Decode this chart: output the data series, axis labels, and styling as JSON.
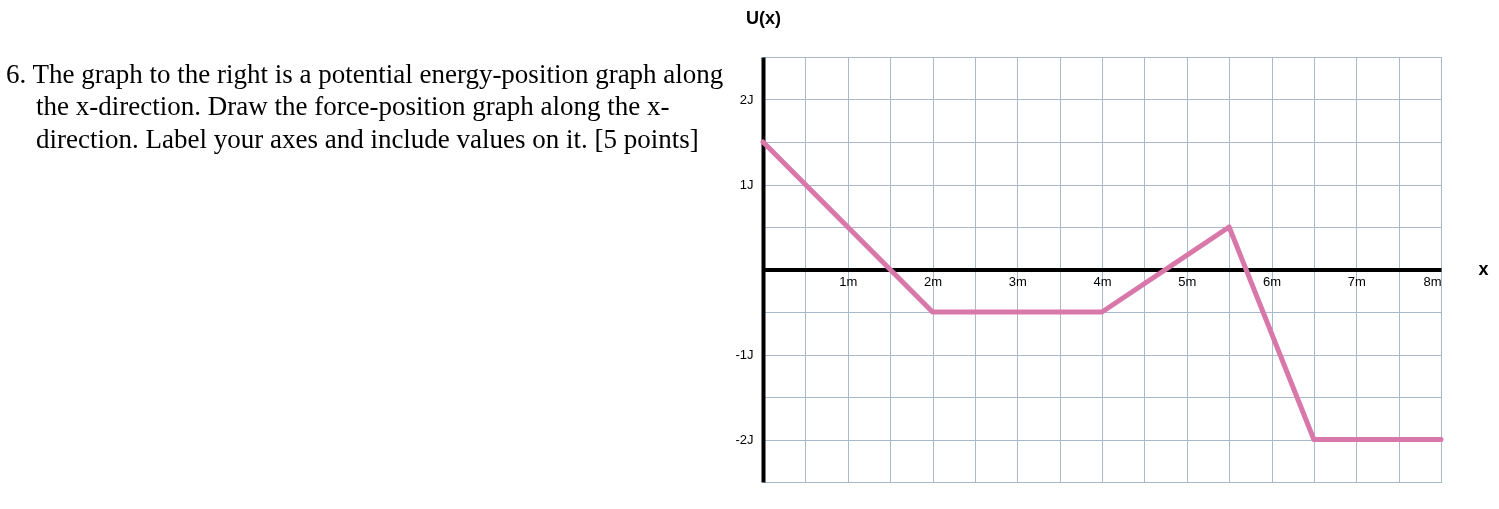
{
  "chart_data": {
    "type": "line",
    "xlabel": "x",
    "ylabel": "U(x)",
    "annotations": [
      "6. The graph to the right is a potential energy-position graph along the x-direction. Draw the force-position graph along the x-direction. Label your axes and include values on it. [5 points]"
    ],
    "x": [
      0,
      1.5,
      2,
      4,
      5.5,
      6.5,
      8
    ],
    "series": [
      {
        "color": "#d877a9",
        "values": [
          1.5,
          0,
          -0.5,
          -0.5,
          0.5,
          -2,
          -2
        ]
      }
    ],
    "xlim": [
      0,
      8
    ],
    "ylim": [
      -2.5,
      2.5
    ],
    "xticks": [
      {
        "value": 0.5,
        "label": null
      },
      {
        "value": 1,
        "label": "1m"
      },
      {
        "value": 1.5,
        "label": null
      },
      {
        "value": 2,
        "label": "2m"
      },
      {
        "value": 2.5,
        "label": null
      },
      {
        "value": 3,
        "label": "3m"
      },
      {
        "value": 3.5,
        "label": null
      },
      {
        "value": 4,
        "label": "4m"
      },
      {
        "value": 4.5,
        "label": null
      },
      {
        "value": 5,
        "label": "5m"
      },
      {
        "value": 5.5,
        "label": null
      },
      {
        "value": 6,
        "label": "6m"
      },
      {
        "value": 6.5,
        "label": null
      },
      {
        "value": 7,
        "label": "7m"
      },
      {
        "value": 7.5,
        "label": null
      },
      {
        "value": 8,
        "label": "8m"
      }
    ],
    "yticks": [
      {
        "value": -2.5,
        "label": null
      },
      {
        "value": -2,
        "label": "-2J"
      },
      {
        "value": -1.5,
        "label": null
      },
      {
        "value": -1,
        "label": "-1J"
      },
      {
        "value": -0.5,
        "label": null
      },
      {
        "value": 0,
        "label": null
      },
      {
        "value": 0.5,
        "label": null
      },
      {
        "value": 1,
        "label": "1J"
      },
      {
        "value": 1.5,
        "label": null
      },
      {
        "value": 2,
        "label": "2J"
      },
      {
        "value": 2.5,
        "label": null
      }
    ],
    "grid": true,
    "line_style": "solid",
    "marker": "none"
  }
}
